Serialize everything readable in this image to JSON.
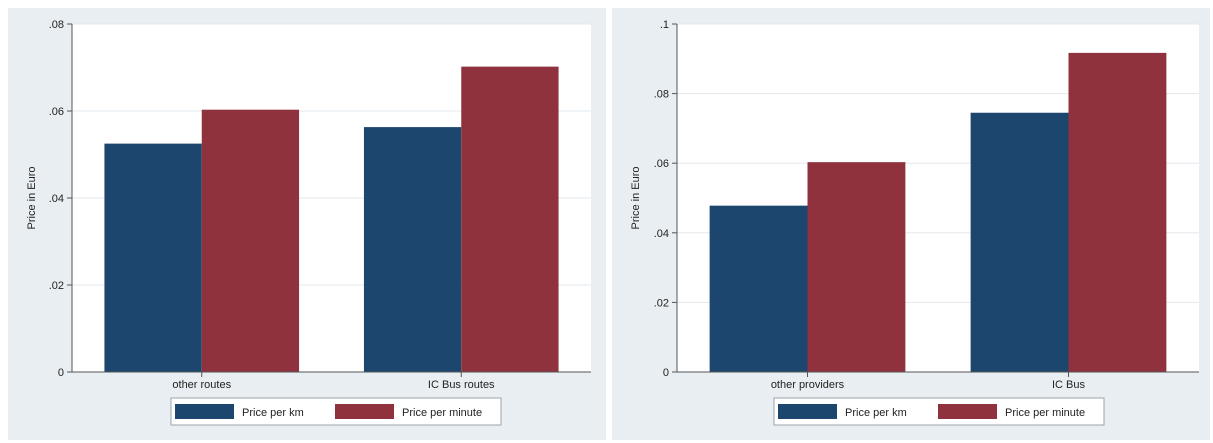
{
  "colors": {
    "panel_bg": "#e9eef2",
    "plot_bg": "#ffffff",
    "gridline": "#e3e8ec",
    "axis": "#555555",
    "series_km": "#1c466d",
    "series_minute": "#8f323d"
  },
  "chart_data": [
    {
      "type": "bar",
      "title": "",
      "xlabel": "",
      "ylabel": "Price in Euro",
      "categories": [
        "other routes",
        "IC Bus routes"
      ],
      "series": [
        {
          "name": "Price per km",
          "values": [
            0.0525,
            0.0563
          ]
        },
        {
          "name": "Price per minute",
          "values": [
            0.0603,
            0.0702
          ]
        }
      ],
      "ylim": [
        0,
        0.08
      ],
      "yticks": [
        0,
        0.02,
        0.04,
        0.06,
        0.08
      ],
      "ytick_labels": [
        "0",
        ".02",
        ".04",
        ".06",
        ".08"
      ],
      "grid": true,
      "legend_position": "bottom"
    },
    {
      "type": "bar",
      "title": "",
      "xlabel": "",
      "ylabel": "Price in Euro",
      "categories": [
        "other providers",
        "IC Bus"
      ],
      "series": [
        {
          "name": "Price per km",
          "values": [
            0.0478,
            0.0745
          ]
        },
        {
          "name": "Price per minute",
          "values": [
            0.0603,
            0.0917
          ]
        }
      ],
      "ylim": [
        0,
        0.1
      ],
      "yticks": [
        0,
        0.02,
        0.04,
        0.06,
        0.08,
        0.1
      ],
      "ytick_labels": [
        "0",
        ".02",
        ".04",
        ".06",
        ".08",
        ".1"
      ],
      "grid": true,
      "legend_position": "bottom"
    }
  ]
}
